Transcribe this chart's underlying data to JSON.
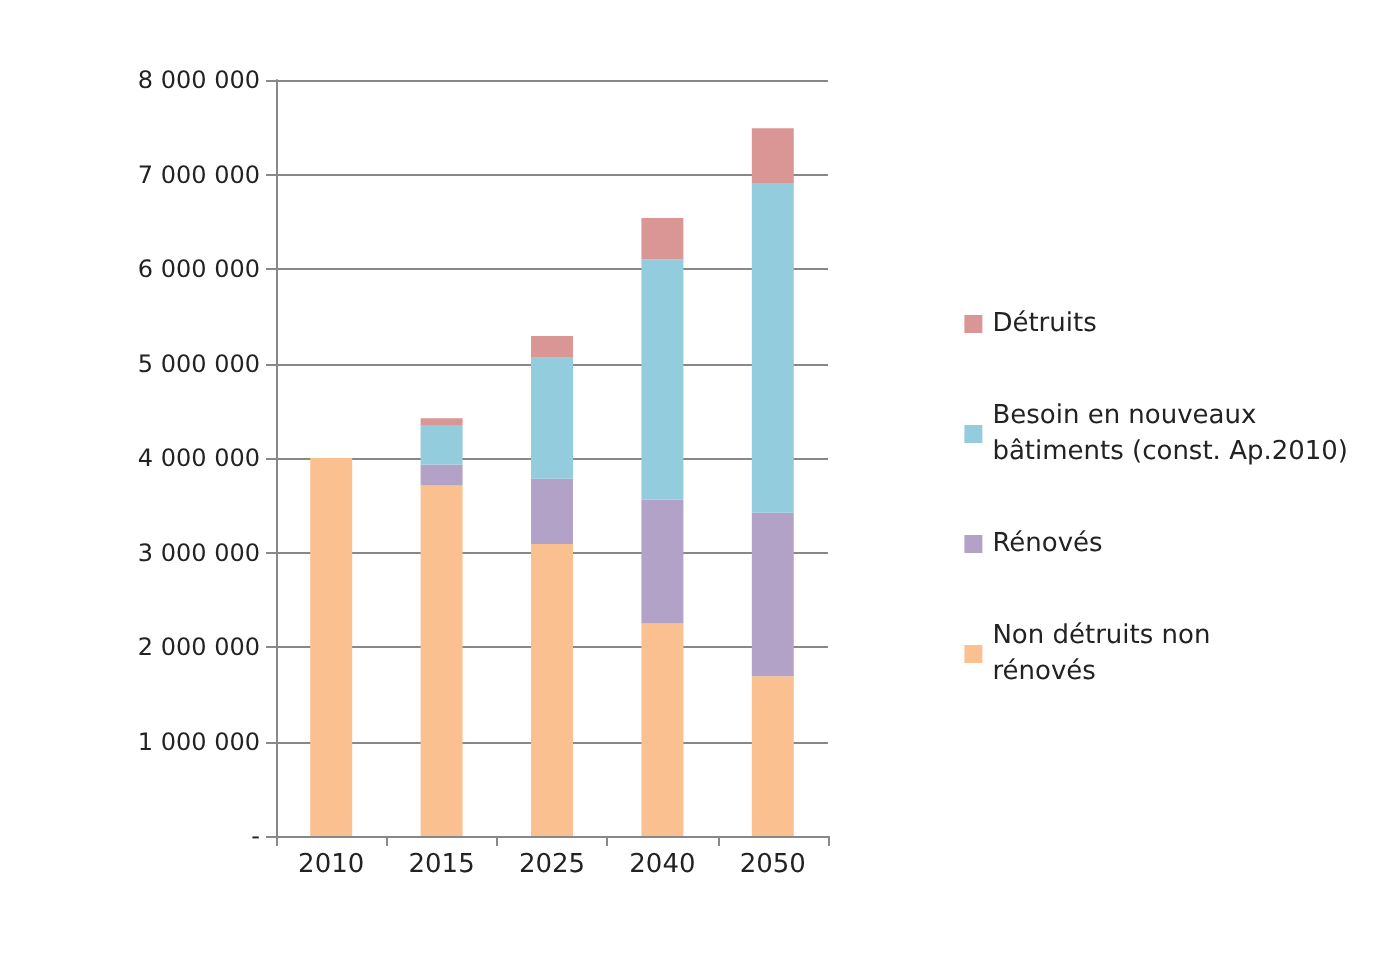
{
  "chart_data": {
    "type": "bar",
    "stacked": true,
    "categories": [
      "2010",
      "2015",
      "2025",
      "2040",
      "2050"
    ],
    "series": [
      {
        "name": "Non détruits non rénovés",
        "color": "#fac090",
        "values": [
          4000000,
          3710000,
          3090000,
          2250000,
          1690000
        ]
      },
      {
        "name": "Rénovés",
        "color": "#b3a2c7",
        "values": [
          0,
          220000,
          690000,
          1310000,
          1730000
        ]
      },
      {
        "name": "Besoin en nouveaux bâtiments (const. Ap.2010)",
        "color": "#93cddd",
        "values": [
          0,
          410000,
          1290000,
          2540000,
          3490000
        ]
      },
      {
        "name": "Détruits",
        "color": "#d99694",
        "values": [
          0,
          80000,
          220000,
          440000,
          580000
        ]
      }
    ],
    "ylim": [
      0,
      8000000
    ],
    "yticks": [
      {
        "value": 0,
        "label": "-"
      },
      {
        "value": 1000000,
        "label": "1 000 000"
      },
      {
        "value": 2000000,
        "label": "2 000 000"
      },
      {
        "value": 3000000,
        "label": "3 000 000"
      },
      {
        "value": 4000000,
        "label": "4 000 000"
      },
      {
        "value": 5000000,
        "label": "5 000 000"
      },
      {
        "value": 6000000,
        "label": "6 000 000"
      },
      {
        "value": 7000000,
        "label": "7 000 000"
      },
      {
        "value": 8000000,
        "label": "8 000 000"
      }
    ],
    "grid": "y",
    "legend": "right"
  }
}
